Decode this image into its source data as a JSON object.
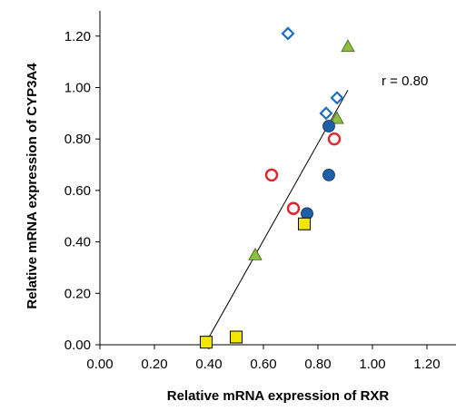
{
  "chart_data": {
    "type": "scatter",
    "title": "",
    "xlabel": "Relative mRNA expression of RXR",
    "ylabel": "Relative mRNA expression of CYP3A4",
    "xlim": [
      0,
      1.3
    ],
    "ylim": [
      0,
      1.25
    ],
    "x_ticks": [
      "0.00",
      "0.20",
      "0.40",
      "0.60",
      "0.80",
      "1.00",
      "1.20"
    ],
    "y_ticks": [
      "0.00",
      "0.20",
      "0.40",
      "0.60",
      "0.80",
      "1.00",
      "1.20"
    ],
    "grid": false,
    "annotation": "r = 0.80",
    "regression_line": {
      "x": [
        0.39,
        0.91
      ],
      "y": [
        0.01,
        0.99
      ]
    },
    "series": [
      {
        "marker": "diamond-open",
        "color": "#1f6fbf",
        "points": [
          {
            "x": 0.69,
            "y": 1.21
          },
          {
            "x": 0.83,
            "y": 0.9
          },
          {
            "x": 0.87,
            "y": 0.96
          }
        ]
      },
      {
        "marker": "triangle",
        "color": "#8cbf3f",
        "points": [
          {
            "x": 0.91,
            "y": 1.16
          },
          {
            "x": 0.87,
            "y": 0.88
          },
          {
            "x": 0.57,
            "y": 0.35
          }
        ]
      },
      {
        "marker": "circle-filled",
        "color": "#1f5fa8",
        "points": [
          {
            "x": 0.84,
            "y": 0.85
          },
          {
            "x": 0.84,
            "y": 0.66
          },
          {
            "x": 0.76,
            "y": 0.51
          }
        ]
      },
      {
        "marker": "circle-open",
        "color": "#e0242b",
        "points": [
          {
            "x": 0.63,
            "y": 0.66
          },
          {
            "x": 0.86,
            "y": 0.8
          },
          {
            "x": 0.71,
            "y": 0.53
          }
        ]
      },
      {
        "marker": "square",
        "color": "#f2e600",
        "points": [
          {
            "x": 0.75,
            "y": 0.47
          },
          {
            "x": 0.39,
            "y": 0.01
          },
          {
            "x": 0.5,
            "y": 0.03
          }
        ]
      }
    ]
  }
}
